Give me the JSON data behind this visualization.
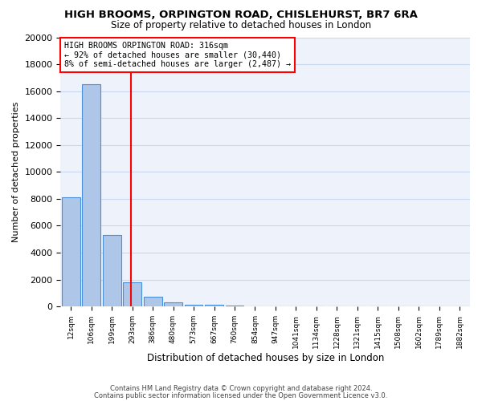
{
  "title": "HIGH BROOMS, ORPINGTON ROAD, CHISLEHURST, BR7 6RA",
  "subtitle": "Size of property relative to detached houses in London",
  "xlabel": "Distribution of detached houses by size in London",
  "ylabel": "Number of detached properties",
  "bar_values": [
    8100,
    16500,
    5300,
    1800,
    700,
    300,
    150,
    100,
    50,
    0,
    0,
    0,
    0,
    0,
    0,
    0,
    0,
    0,
    0,
    0
  ],
  "bin_labels": [
    "12sqm",
    "106sqm",
    "199sqm",
    "293sqm",
    "386sqm",
    "480sqm",
    "573sqm",
    "667sqm",
    "760sqm",
    "854sqm",
    "947sqm",
    "1041sqm",
    "1134sqm",
    "1228sqm",
    "1321sqm",
    "1415sqm",
    "1508sqm",
    "1602sqm",
    "1789sqm",
    "1882sqm"
  ],
  "bar_color": "#aec6e8",
  "bar_edge_color": "#4a90d9",
  "background_color": "#eef3fb",
  "grid_color": "#c8d8f0",
  "vline_x": 2.95,
  "vline_color": "red",
  "annotation_title": "HIGH BROOMS ORPINGTON ROAD: 316sqm",
  "annotation_line1": "← 92% of detached houses are smaller (30,440)",
  "annotation_line2": "8% of semi-detached houses are larger (2,487) →",
  "annotation_box_color": "white",
  "annotation_box_edge": "red",
  "ylim": [
    0,
    20000
  ],
  "yticks": [
    0,
    2000,
    4000,
    6000,
    8000,
    10000,
    12000,
    14000,
    16000,
    18000,
    20000
  ],
  "footer_line1": "Contains HM Land Registry data © Crown copyright and database right 2024.",
  "footer_line2": "Contains public sector information licensed under the Open Government Licence v3.0."
}
